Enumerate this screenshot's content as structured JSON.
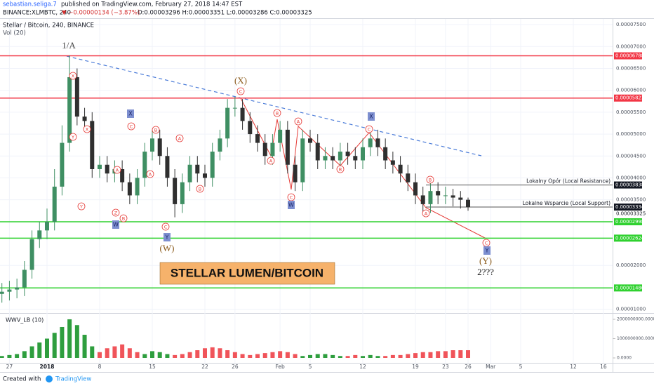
{
  "header": {
    "author": "sebastian.seliga.7",
    "published": "published on TradingView.com, February 27, 2018 14:47 EST",
    "symbol": "BINANCE:XLMBTC, 240",
    "change": "▼ −0.00000134 (−3.87%)",
    "ohlc": "O:0.00003296 H:0.00003351 L:0.00003286 C:0.00003325"
  },
  "chart_data": [
    {
      "type": "candlestick",
      "title": "Stellar / Bitcoin, 240, BINANCE",
      "volume_label": "Vol (20)",
      "banner": "STELLAR LUMEN/BITCOIN",
      "x": [
        "2017-12-26",
        "2017-12-27",
        "2017-12-28",
        "2017-12-29",
        "2017-12-30",
        "2017-12-31",
        "2018-01-01",
        "2018-01-02",
        "2018-01-03",
        "2018-01-04",
        "2018-01-05",
        "2018-01-06",
        "2018-01-07",
        "2018-01-08",
        "2018-01-09",
        "2018-01-10",
        "2018-01-11",
        "2018-01-12",
        "2018-01-13",
        "2018-01-14",
        "2018-01-15",
        "2018-01-16",
        "2018-01-17",
        "2018-01-18",
        "2018-01-19",
        "2018-01-20",
        "2018-01-21",
        "2018-01-22",
        "2018-01-23",
        "2018-01-24",
        "2018-01-25",
        "2018-01-26",
        "2018-01-27",
        "2018-01-28",
        "2018-01-29",
        "2018-01-30",
        "2018-01-31",
        "2018-02-01",
        "2018-02-02",
        "2018-02-03",
        "2018-02-04",
        "2018-02-05",
        "2018-02-06",
        "2018-02-07",
        "2018-02-08",
        "2018-02-09",
        "2018-02-10",
        "2018-02-11",
        "2018-02-12",
        "2018-02-13",
        "2018-02-14",
        "2018-02-15",
        "2018-02-16",
        "2018-02-17",
        "2018-02-18",
        "2018-02-19",
        "2018-02-20",
        "2018-02-21",
        "2018-02-22",
        "2018-02-23",
        "2018-02-24",
        "2018-02-25",
        "2018-02-26"
      ],
      "open": [
        1.35e-05,
        1.4e-05,
        1.45e-05,
        1.5e-05,
        1.9e-05,
        2.6e-05,
        2.8e-05,
        3e-05,
        3.8e-05,
        4.8e-05,
        6.3e-05,
        5.4e-05,
        5.3e-05,
        4.2e-05,
        4.3e-05,
        4.1e-05,
        4.2e-05,
        3.9e-05,
        3.6e-05,
        4e-05,
        4.6e-05,
        4.9e-05,
        4.5e-05,
        4e-05,
        3.4e-05,
        3.9e-05,
        4.3e-05,
        4.1e-05,
        4e-05,
        4.6e-05,
        4.9e-05,
        5.6e-05,
        5.6e-05,
        5.3e-05,
        5e-05,
        4.8e-05,
        4.5e-05,
        4.8e-05,
        5.1e-05,
        4.3e-05,
        3.9e-05,
        4.9e-05,
        4.8e-05,
        4.4e-05,
        4.5e-05,
        4.4e-05,
        4.6e-05,
        4.5e-05,
        4.4e-05,
        4.7e-05,
        4.9e-05,
        4.7e-05,
        4.4e-05,
        4.3e-05,
        4.1e-05,
        3.9e-05,
        3.6e-05,
        3.4e-05,
        3.7e-05,
        3.6e-05,
        3.6e-05,
        3.55e-05,
        3.5e-05
      ],
      "high": [
        1.6e-05,
        1.65e-05,
        1.7e-05,
        2.1e-05,
        2.8e-05,
        3e-05,
        3.3e-05,
        4.2e-05,
        5.2e-05,
        6.8e-05,
        6.5e-05,
        5.6e-05,
        5.5e-05,
        4.5e-05,
        4.5e-05,
        4.4e-05,
        4.4e-05,
        4.1e-05,
        4.2e-05,
        4.8e-05,
        5.1e-05,
        5.1e-05,
        4.7e-05,
        4.2e-05,
        4.1e-05,
        4.5e-05,
        4.5e-05,
        4.3e-05,
        4.8e-05,
        5.1e-05,
        5.8e-05,
        5.85e-05,
        5.8e-05,
        5.5e-05,
        5.2e-05,
        5e-05,
        5e-05,
        5.3e-05,
        5.3e-05,
        4.5e-05,
        5.1e-05,
        5.1e-05,
        5e-05,
        4.7e-05,
        4.7e-05,
        4.8e-05,
        4.8e-05,
        4.7e-05,
        4.9e-05,
        5.1e-05,
        5.1e-05,
        4.9e-05,
        4.6e-05,
        4.5e-05,
        4.3e-05,
        4.1e-05,
        3.8e-05,
        3.9e-05,
        3.9e-05,
        3.8e-05,
        3.75e-05,
        3.7e-05,
        3.55e-05
      ],
      "low": [
        1.15e-05,
        1.2e-05,
        1.25e-05,
        1.3e-05,
        1.7e-05,
        2.4e-05,
        2.6e-05,
        2.8e-05,
        3.6e-05,
        4.6e-05,
        5.2e-05,
        5.1e-05,
        4e-05,
        4e-05,
        3.9e-05,
        3.9e-05,
        3.7e-05,
        3.4e-05,
        3.4e-05,
        3.8e-05,
        4.4e-05,
        4.3e-05,
        3.8e-05,
        3.1e-05,
        3.2e-05,
        3.7e-05,
        3.9e-05,
        3.8e-05,
        3.8e-05,
        4.4e-05,
        4.7e-05,
        5.4e-05,
        5.1e-05,
        4.8e-05,
        4.6e-05,
        4.3e-05,
        4.3e-05,
        4.6e-05,
        4.1e-05,
        3.7e-05,
        3.7e-05,
        4.6e-05,
        4.2e-05,
        4.2e-05,
        4.2e-05,
        4.2e-05,
        4.3e-05,
        4.2e-05,
        4.2e-05,
        4.5e-05,
        4.5e-05,
        4.2e-05,
        4.1e-05,
        3.9e-05,
        3.7e-05,
        3.4e-05,
        3.2e-05,
        3.2e-05,
        3.4e-05,
        3.4e-05,
        3.35e-05,
        3.3e-05,
        3.25e-05
      ],
      "close": [
        1.4e-05,
        1.45e-05,
        1.5e-05,
        1.9e-05,
        2.6e-05,
        2.8e-05,
        3e-05,
        3.8e-05,
        4.8e-05,
        6.3e-05,
        5.4e-05,
        5.3e-05,
        4.2e-05,
        4.3e-05,
        4.1e-05,
        4.2e-05,
        3.9e-05,
        3.6e-05,
        4e-05,
        4.6e-05,
        4.9e-05,
        4.5e-05,
        4e-05,
        3.4e-05,
        3.9e-05,
        4.3e-05,
        4.1e-05,
        4e-05,
        4.6e-05,
        4.9e-05,
        5.6e-05,
        5.6e-05,
        5.3e-05,
        5e-05,
        4.8e-05,
        4.5e-05,
        4.8e-05,
        5.1e-05,
        4.3e-05,
        3.9e-05,
        4.9e-05,
        4.8e-05,
        4.4e-05,
        4.5e-05,
        4.4e-05,
        4.6e-05,
        4.5e-05,
        4.4e-05,
        4.7e-05,
        4.9e-05,
        4.7e-05,
        4.4e-05,
        4.3e-05,
        4.1e-05,
        3.9e-05,
        3.6e-05,
        3.4e-05,
        3.7e-05,
        3.6e-05,
        3.6e-05,
        3.55e-05,
        3.5e-05,
        3.33e-05
      ],
      "up_color": "#3f8f63",
      "down_color": "#2f2f2f",
      "xlim": [
        "2017-12-26",
        "2018-03-17"
      ],
      "xticks": [
        {
          "value": "2017-12-27",
          "label": "27"
        },
        {
          "value": "2018-01-01",
          "label": "2018"
        },
        {
          "value": "2018-01-08",
          "label": "8"
        },
        {
          "value": "2018-01-15",
          "label": "15"
        },
        {
          "value": "2018-01-22",
          "label": "22"
        },
        {
          "value": "2018-01-26",
          "label": "26"
        },
        {
          "value": "2018-02-01",
          "label": "Feb"
        },
        {
          "value": "2018-02-05",
          "label": "5"
        },
        {
          "value": "2018-02-12",
          "label": "12"
        },
        {
          "value": "2018-02-19",
          "label": "19"
        },
        {
          "value": "2018-02-23",
          "label": "23"
        },
        {
          "value": "2018-02-26",
          "label": "26"
        },
        {
          "value": "2018-03-01",
          "label": "Mar"
        },
        {
          "value": "2018-03-05",
          "label": "5"
        },
        {
          "value": "2018-03-12",
          "label": "12"
        },
        {
          "value": "2018-03-16",
          "label": "16"
        }
      ],
      "ylim": [
        9.3e-06,
        7.63e-05
      ],
      "yticks": [
        {
          "value": 7.5e-05,
          "label": "0.00007500"
        },
        {
          "value": 7e-05,
          "label": "0.00007000"
        },
        {
          "value": 6.5e-05,
          "label": "0.00006500"
        },
        {
          "value": 6e-05,
          "label": "0.00006000"
        },
        {
          "value": 5.5e-05,
          "label": "0.00005500"
        },
        {
          "value": 5e-05,
          "label": "0.00005000"
        },
        {
          "value": 4.5e-05,
          "label": "0.00004500"
        },
        {
          "value": 4e-05,
          "label": "0.00004000"
        },
        {
          "value": 3.5e-05,
          "label": "0.00003500"
        },
        {
          "value": 2e-05,
          "label": "0.00002000"
        },
        {
          "value": 1e-05,
          "label": "0.00001000"
        }
      ],
      "grid": true,
      "price_lines": [
        {
          "value": 6.788e-05,
          "label": "0.00006788",
          "color": "#f23645"
        },
        {
          "value": 5.823e-05,
          "label": "0.00005823",
          "color": "#f23645"
        },
        {
          "value": 3.838e-05,
          "label": "0.00003838",
          "color": "#131722",
          "text": "Lokalny Opór (Local Resistance)"
        },
        {
          "value": 3.334e-05,
          "label": "0.00003334",
          "color": "#131722",
          "text": "Lokalne Wsparcie (Local Support)"
        },
        {
          "value": 2.998e-05,
          "label": "0.00002998",
          "color": "#2fd12f"
        },
        {
          "value": 2.624e-05,
          "label": "0.00002624",
          "color": "#2fd12f"
        },
        {
          "value": 1.486e-05,
          "label": "0.00001486",
          "color": "#2fd12f"
        }
      ],
      "last_price": {
        "value": 3.325e-05,
        "label": "0.00003325"
      },
      "wave_labels_circled": [
        "X",
        "X",
        "Y",
        "Y",
        "Z",
        "A",
        "B",
        "C",
        "A",
        "B",
        "C",
        "A",
        "B",
        "C",
        "A",
        "B",
        "C",
        "A",
        "B",
        "C",
        "A",
        "B",
        "C"
      ],
      "wave_labels_boxed": [
        "X",
        "W",
        "Y",
        "W",
        "X",
        "Y"
      ],
      "wave_labels_degree": [
        "1/A",
        "(X)",
        "(W)",
        "(Y)",
        "2???"
      ]
    },
    {
      "type": "bar",
      "title": "WWV_LB (10)",
      "x": [
        "2017-12-26",
        "2017-12-27",
        "2017-12-28",
        "2017-12-29",
        "2017-12-30",
        "2017-12-31",
        "2018-01-01",
        "2018-01-02",
        "2018-01-03",
        "2018-01-04",
        "2018-01-05",
        "2018-01-06",
        "2018-01-07",
        "2018-01-08",
        "2018-01-09",
        "2018-01-10",
        "2018-01-11",
        "2018-01-12",
        "2018-01-13",
        "2018-01-14",
        "2018-01-15",
        "2018-01-16",
        "2018-01-17",
        "2018-01-18",
        "2018-01-19",
        "2018-01-20",
        "2018-01-21",
        "2018-01-22",
        "2018-01-23",
        "2018-01-24",
        "2018-01-25",
        "2018-01-26",
        "2018-01-27",
        "2018-01-28",
        "2018-01-29",
        "2018-01-30",
        "2018-01-31",
        "2018-02-01",
        "2018-02-02",
        "2018-02-03",
        "2018-02-04",
        "2018-02-05",
        "2018-02-06",
        "2018-02-07",
        "2018-02-08",
        "2018-02-09",
        "2018-02-10",
        "2018-02-11",
        "2018-02-12",
        "2018-02-13",
        "2018-02-14",
        "2018-02-15",
        "2018-02-16",
        "2018-02-17",
        "2018-02-18",
        "2018-02-19",
        "2018-02-20",
        "2018-02-21",
        "2018-02-22",
        "2018-02-23",
        "2018-02-24",
        "2018-02-25",
        "2018-02-26"
      ],
      "values": [
        100000000,
        150000000,
        200000000,
        350000000,
        600000000,
        800000000,
        1000000000,
        1300000000,
        1600000000,
        2000000000,
        1700000000,
        1200000000,
        600000000,
        300000000,
        500000000,
        600000000,
        700000000,
        500000000,
        300000000,
        200000000,
        350000000,
        300000000,
        200000000,
        150000000,
        200000000,
        300000000,
        400000000,
        500000000,
        550000000,
        500000000,
        400000000,
        300000000,
        200000000,
        150000000,
        200000000,
        250000000,
        300000000,
        350000000,
        300000000,
        200000000,
        100000000,
        150000000,
        200000000,
        200000000,
        150000000,
        100000000,
        100000000,
        150000000,
        100000000,
        150000000,
        100000000,
        100000000,
        150000000,
        150000000,
        200000000,
        250000000,
        300000000,
        300000000,
        350000000,
        350000000,
        400000000,
        400000000,
        400000000
      ],
      "colors": [
        "#2e9e3e",
        "#2e9e3e",
        "#2e9e3e",
        "#2e9e3e",
        "#2e9e3e",
        "#2e9e3e",
        "#2e9e3e",
        "#2e9e3e",
        "#2e9e3e",
        "#2e9e3e",
        "#2e9e3e",
        "#2e9e3e",
        "#2e9e3e",
        "#f0545a",
        "#f0545a",
        "#f0545a",
        "#f0545a",
        "#f0545a",
        "#f0545a",
        "#2e9e3e",
        "#2e9e3e",
        "#2e9e3e",
        "#2e9e3e",
        "#f0545a",
        "#f0545a",
        "#f0545a",
        "#f0545a",
        "#f0545a",
        "#f0545a",
        "#f0545a",
        "#f0545a",
        "#f0545a",
        "#f0545a",
        "#f0545a",
        "#f0545a",
        "#f0545a",
        "#f0545a",
        "#f0545a",
        "#f0545a",
        "#f0545a",
        "#2e9e3e",
        "#2e9e3e",
        "#2e9e3e",
        "#2e9e3e",
        "#2e9e3e",
        "#2e9e3e",
        "#f0545a",
        "#f0545a",
        "#2e9e3e",
        "#2e9e3e",
        "#2e9e3e",
        "#f0545a",
        "#f0545a",
        "#f0545a",
        "#f0545a",
        "#f0545a",
        "#f0545a",
        "#f0545a",
        "#f0545a",
        "#f0545a",
        "#f0545a",
        "#f0545a",
        "#f0545a"
      ],
      "xlim": [
        "2017-12-26",
        "2018-03-17"
      ],
      "ylim": [
        -254500000,
        2290000000
      ],
      "yticks": [
        {
          "value": 0,
          "label": "0.0000"
        },
        {
          "value": 1000000000,
          "label": "1000000000.0000"
        },
        {
          "value": 2000000000,
          "label": "2000000000.0000"
        }
      ]
    }
  ],
  "footer": {
    "created": "Created with",
    "brand": "TradingView"
  }
}
